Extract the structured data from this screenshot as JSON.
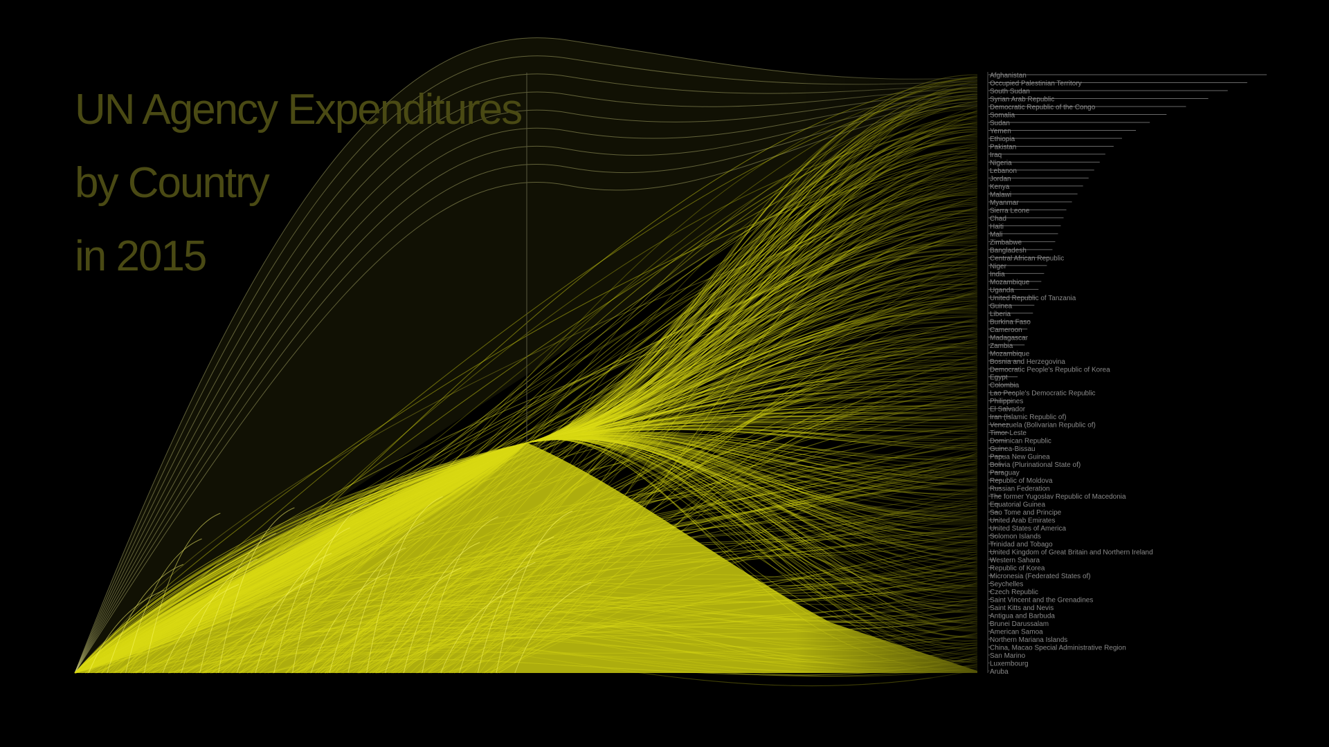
{
  "title": {
    "lines": [
      "UN Agency Expenditures",
      "by Country",
      "in 2015"
    ]
  },
  "colors": {
    "background": "#000000",
    "flow": "#d8d812",
    "flow_bright": "#f0ee2a",
    "title": "#4a4a14",
    "label": "#8a8a8a",
    "bar": "#6a6a6a"
  },
  "chart_data": {
    "type": "flow",
    "title": "UN Agency Expenditures by Country in 2015",
    "legend": "none",
    "grid": false,
    "sources_count": 24,
    "labels": [
      "Afghanistan",
      "Occupied Palestinian Territory",
      "South Sudan",
      "Syrian Arab Republic",
      "Democratic Republic of the Congo",
      "Somalia",
      "Sudan",
      "Yemen",
      "Ethiopia",
      "Pakistan",
      "Iraq",
      "Nigeria",
      "Lebanon",
      "Jordan",
      "Kenya",
      "Malawi",
      "Myanmar",
      "Sierra Leone",
      "Chad",
      "Haiti",
      "Mali",
      "Zimbabwe",
      "Bangladesh",
      "Central African Republic",
      "Niger",
      "India",
      "Mozambique",
      "Uganda",
      "United Republic of Tanzania",
      "Guinea",
      "Liberia",
      "Burkina Faso",
      "Cameroon",
      "Madagascar",
      "Zambia",
      "Mozambique",
      "Bosnia and Herzegovina",
      "Democratic People's Republic of Korea",
      "Egypt",
      "Colombia",
      "Lao People's Democratic Republic",
      "Philippines",
      "El Salvador",
      "Iran (Islamic Republic of)",
      "Venezuela (Bolivarian Republic of)",
      "Timor-Leste",
      "Dominican Republic",
      "Guinea-Bissau",
      "Papua New Guinea",
      "Bolivia (Plurinational State of)",
      "Paraguay",
      "Republic of Moldova",
      "Russian Federation",
      "The former Yugoslav Republic of Macedonia",
      "Equatorial Guinea",
      "Sao Tome and Principe",
      "United Arab Emirates",
      "United States of America",
      "Solomon Islands",
      "Trinidad and Tobago",
      "United Kingdom of Great Britain and Northern Ireland",
      "Western Sahara",
      "Republic of Korea",
      "Micronesia (Federated States of)",
      "Seychelles",
      "Czech Republic",
      "Saint Vincent and the Grenadines",
      "Saint Kitts and Nevis",
      "Antigua and Barbuda",
      "Brunei Darussalam",
      "American Samoa",
      "Northern Mariana Islands",
      "China, Macao Special Administrative Region",
      "San Marino",
      "Luxembourg",
      "Aruba"
    ],
    "values": [
      1.0,
      0.93,
      0.86,
      0.79,
      0.71,
      0.64,
      0.58,
      0.53,
      0.48,
      0.45,
      0.42,
      0.4,
      0.38,
      0.36,
      0.34,
      0.32,
      0.3,
      0.28,
      0.27,
      0.26,
      0.25,
      0.24,
      0.23,
      0.22,
      0.21,
      0.2,
      0.19,
      0.18,
      0.17,
      0.165,
      0.16,
      0.15,
      0.14,
      0.135,
      0.13,
      0.125,
      0.12,
      0.11,
      0.105,
      0.1,
      0.095,
      0.09,
      0.085,
      0.08,
      0.076,
      0.072,
      0.068,
      0.064,
      0.06,
      0.056,
      0.052,
      0.048,
      0.045,
      0.042,
      0.039,
      0.036,
      0.033,
      0.03,
      0.028,
      0.026,
      0.024,
      0.022,
      0.02,
      0.018,
      0.016,
      0.014,
      0.012,
      0.011,
      0.01,
      0.009,
      0.008,
      0.007,
      0.006,
      0.005,
      0.004,
      0.003
    ]
  }
}
